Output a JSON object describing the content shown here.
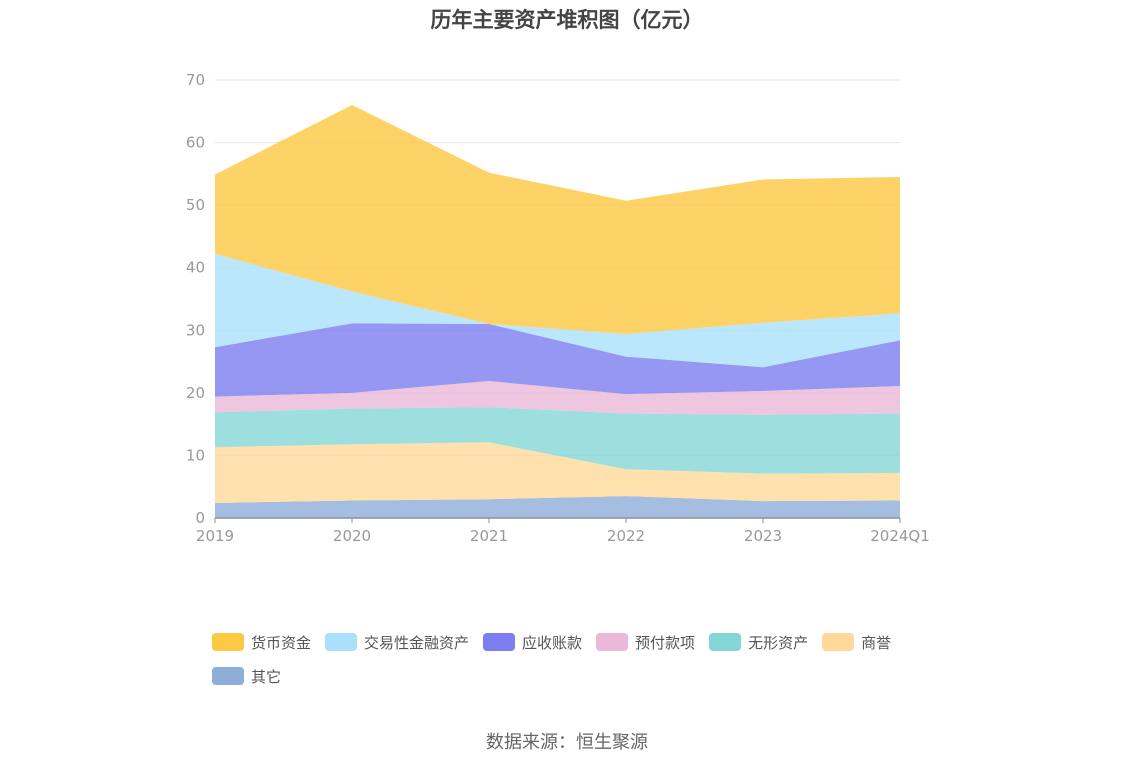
{
  "title": "历年主要资产堆积图（亿元）",
  "source": "数据来源：恒生聚源",
  "chart_data": {
    "type": "area",
    "stacked": true,
    "title": "历年主要资产堆积图（亿元）",
    "xlabel": "",
    "ylabel": "",
    "categories": [
      "2019",
      "2020",
      "2021",
      "2022",
      "2023",
      "2024Q1"
    ],
    "ylim": [
      0,
      70
    ],
    "yticks": [
      0,
      10,
      20,
      30,
      40,
      50,
      60,
      70
    ],
    "grid": true,
    "legend_position": "bottom",
    "series": [
      {
        "name": "其它",
        "color": "#8eadd9",
        "values": [
          2.4,
          2.8,
          3.0,
          3.5,
          2.7,
          2.8
        ]
      },
      {
        "name": "商誉",
        "color": "#ffd99a",
        "values": [
          8.9,
          9.0,
          9.1,
          4.3,
          4.4,
          4.4
        ]
      },
      {
        "name": "无形资产",
        "color": "#85d6d6",
        "values": [
          5.6,
          5.7,
          5.6,
          8.9,
          9.4,
          9.5
        ]
      },
      {
        "name": "预付款项",
        "color": "#eab8d8",
        "values": [
          2.5,
          2.5,
          4.2,
          3.1,
          3.8,
          4.4
        ]
      },
      {
        "name": "应收账款",
        "color": "#7c7df0",
        "values": [
          7.9,
          11.1,
          9.1,
          6.0,
          3.8,
          7.3
        ]
      },
      {
        "name": "交易性金融资产",
        "color": "#a9e1fa",
        "values": [
          14.9,
          5.1,
          0.0,
          3.6,
          7.1,
          4.3
        ]
      },
      {
        "name": "货币资金",
        "color": "#fdc842",
        "values": [
          12.7,
          29.8,
          24.2,
          21.3,
          22.9,
          21.8
        ]
      }
    ]
  },
  "legend": [
    {
      "label": "货币资金",
      "color": "#fdc842"
    },
    {
      "label": "交易性金融资产",
      "color": "#a9e1fa"
    },
    {
      "label": "应收账款",
      "color": "#7c7df0"
    },
    {
      "label": "预付款项",
      "color": "#eab8d8"
    },
    {
      "label": "无形资产",
      "color": "#85d6d6"
    },
    {
      "label": "商誉",
      "color": "#ffd99a"
    },
    {
      "label": "其它",
      "color": "#8eadd9"
    }
  ]
}
